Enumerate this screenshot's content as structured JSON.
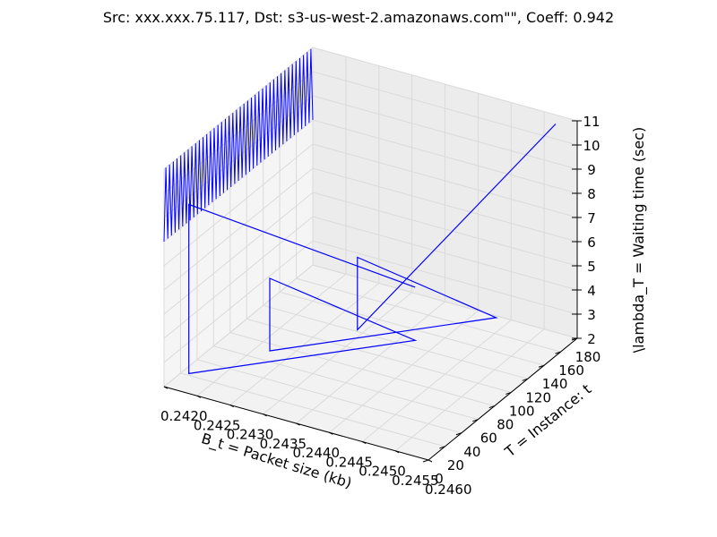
{
  "chart_data": {
    "type": "line",
    "title": "Src: xxx.xxx.75.117, Dst: s3-us-west-2.amazonaws.com\"\", Coeff: 0.942",
    "xlabel": "B_t = Packet size (kb)",
    "ylabel": "T = Instance: t",
    "zlabel": "\\lambda_T = Waiting time (sec)",
    "x_ticks": [
      "0.2420",
      "0.2425",
      "0.2430",
      "0.2435",
      "0.2440",
      "0.2445",
      "0.2450",
      "0.2455",
      "0.2460"
    ],
    "y_ticks": [
      "0",
      "20",
      "40",
      "60",
      "80",
      "100",
      "120",
      "140",
      "160",
      "180"
    ],
    "z_ticks": [
      "2",
      "3",
      "4",
      "5",
      "6",
      "7",
      "8",
      "9",
      "10",
      "11"
    ],
    "xlim": [
      0.242,
      0.246
    ],
    "ylim": [
      0,
      180
    ],
    "zlim": [
      2,
      11
    ],
    "grid": true,
    "series": [
      {
        "color": "#0000ff",
        "x": [
          0.2458,
          0.2421,
          0.2421,
          0.2452,
          0.2427,
          0.2427,
          0.2458,
          0.2434,
          0.2434,
          0.2458
        ],
        "y": [
          0,
          22,
          22,
          48,
          72,
          72,
          98,
          122,
          122,
          170
        ],
        "z": [
          9,
          9,
          2,
          5,
          5,
          2,
          5,
          5,
          2,
          11
        ]
      }
    ],
    "oscillation_band": {
      "note": "dense zig-zag near x=0.2420 edge",
      "y_range": [
        0,
        180
      ],
      "z_range": [
        8,
        11
      ],
      "cycles": 40
    }
  }
}
